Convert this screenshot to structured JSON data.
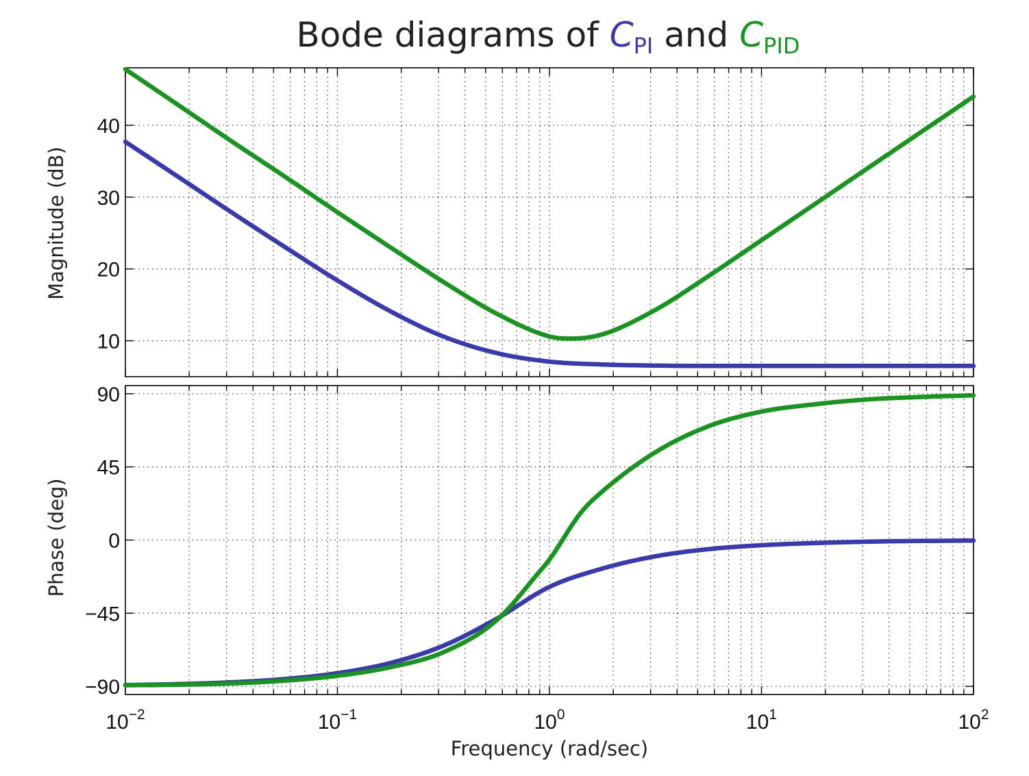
{
  "title": {
    "prefix": "Bode diagrams of ",
    "pi_symbol": "C",
    "pi_subscript": "PI",
    "connector": " and ",
    "pid_symbol": "C",
    "pid_subscript": "PID"
  },
  "colors": {
    "pi": "#3a3ab0",
    "pid": "#17951f",
    "grid": "#444444",
    "frame": "#000000"
  },
  "chart_data": [
    {
      "type": "line",
      "ylabel": "Magnitude (dB)",
      "xscale": "log",
      "xlim": [
        0.01,
        100
      ],
      "ylim": [
        5,
        48
      ],
      "yticks": [
        10,
        20,
        30,
        40
      ],
      "grid": true,
      "series": [
        {
          "name": "C_PI",
          "x": [
            0.01,
            0.0178,
            0.0316,
            0.0562,
            0.1,
            0.178,
            0.316,
            0.562,
            1,
            1.78,
            3.16,
            5.62,
            10,
            31.6,
            100
          ],
          "y": [
            37.7,
            32.8,
            27.9,
            23.1,
            18.4,
            14.1,
            10.6,
            8.3,
            7.1,
            6.7,
            6.55,
            6.5,
            6.5,
            6.5,
            6.5
          ]
        },
        {
          "name": "C_PID",
          "x": [
            0.01,
            0.0178,
            0.0316,
            0.0562,
            0.1,
            0.178,
            0.316,
            0.562,
            1,
            1.26,
            1.78,
            3.16,
            5.62,
            10,
            17.8,
            31.6,
            56.2,
            100
          ],
          "y": [
            47.8,
            42.8,
            37.8,
            32.9,
            27.9,
            23.0,
            18.2,
            13.8,
            10.6,
            10.3,
            10.9,
            14.3,
            19.0,
            24.0,
            29.0,
            34.0,
            39.0,
            44.0
          ]
        }
      ]
    },
    {
      "type": "line",
      "xlabel": "Frequency (rad/sec)",
      "ylabel": "Phase (deg)",
      "xscale": "log",
      "xlim": [
        0.01,
        100
      ],
      "ylim": [
        -95,
        95
      ],
      "yticks": [
        -90,
        -45,
        0,
        45,
        90
      ],
      "xticks": [
        {
          "base": "10",
          "exp": "−2",
          "value": 0.01
        },
        {
          "base": "10",
          "exp": "−1",
          "value": 0.1
        },
        {
          "base": "10",
          "exp": "0",
          "value": 1
        },
        {
          "base": "10",
          "exp": "1",
          "value": 10
        },
        {
          "base": "10",
          "exp": "2",
          "value": 100
        }
      ],
      "grid": true,
      "series": [
        {
          "name": "C_PI",
          "x": [
            0.01,
            0.0178,
            0.0316,
            0.0562,
            0.1,
            0.178,
            0.316,
            0.562,
            1,
            1.78,
            3.16,
            5.62,
            10,
            31.6,
            100
          ],
          "y": [
            -89.2,
            -88.6,
            -87.5,
            -85.5,
            -81.9,
            -75.6,
            -65.0,
            -48.5,
            -28.8,
            -17.5,
            -10.0,
            -5.6,
            -3.2,
            -1.0,
            -0.3
          ]
        },
        {
          "name": "C_PID",
          "x": [
            0.01,
            0.0178,
            0.0316,
            0.0562,
            0.1,
            0.178,
            0.316,
            0.562,
            0.89,
            1,
            1.41,
            1.78,
            3.16,
            5.62,
            10,
            17.8,
            31.6,
            56.2,
            100
          ],
          "y": [
            -89.3,
            -89.0,
            -88.2,
            -86.5,
            -83.5,
            -78.2,
            -69.0,
            -49.5,
            -20.0,
            -12.0,
            17.0,
            30.0,
            54.0,
            70.0,
            79.0,
            83.5,
            86.5,
            88.0,
            89.0
          ]
        }
      ]
    }
  ]
}
